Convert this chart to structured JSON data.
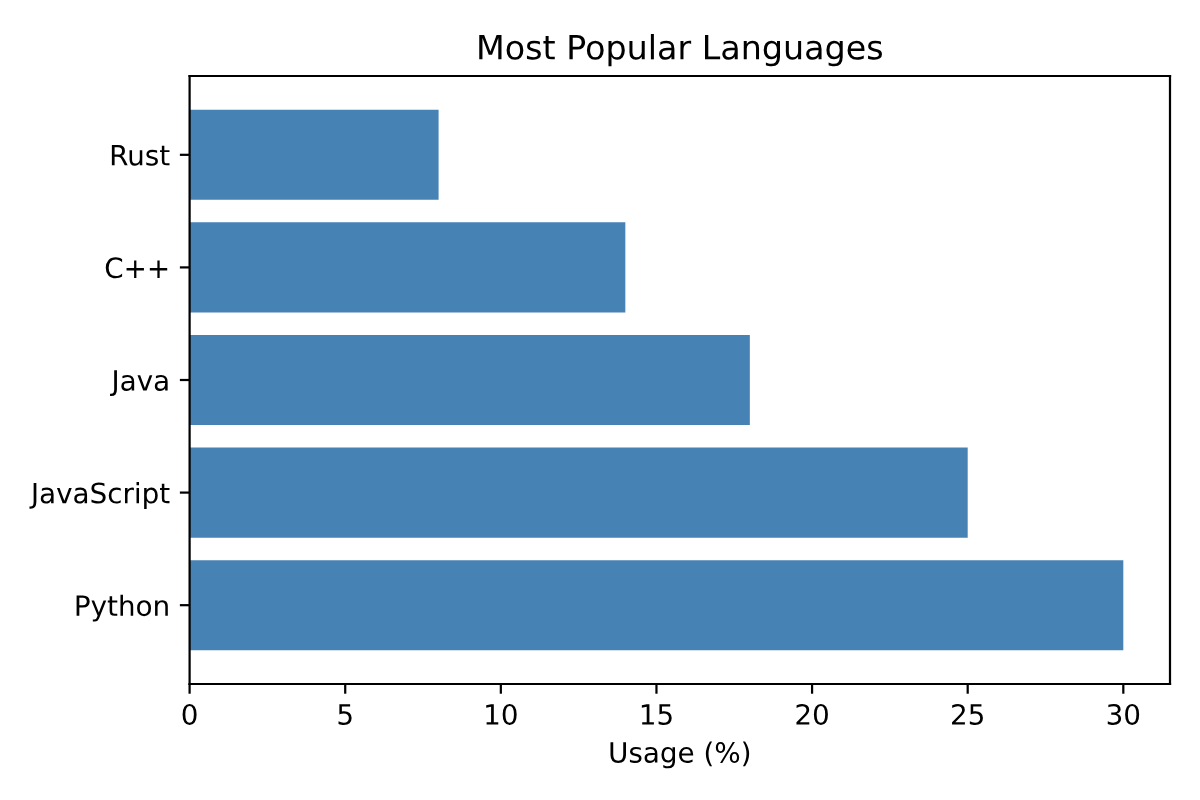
{
  "chart_data": {
    "type": "bar",
    "orientation": "horizontal",
    "title": "Most Popular Languages",
    "xlabel": "Usage (%)",
    "categories": [
      "Rust",
      "C++",
      "Java",
      "JavaScript",
      "Python"
    ],
    "values": [
      8,
      14,
      18,
      25,
      30
    ],
    "color": "#4682b4",
    "xlim": [
      0,
      31.5
    ],
    "xticks": [
      0,
      5,
      10,
      15,
      20,
      25,
      30
    ],
    "grid": false,
    "legend": false
  }
}
